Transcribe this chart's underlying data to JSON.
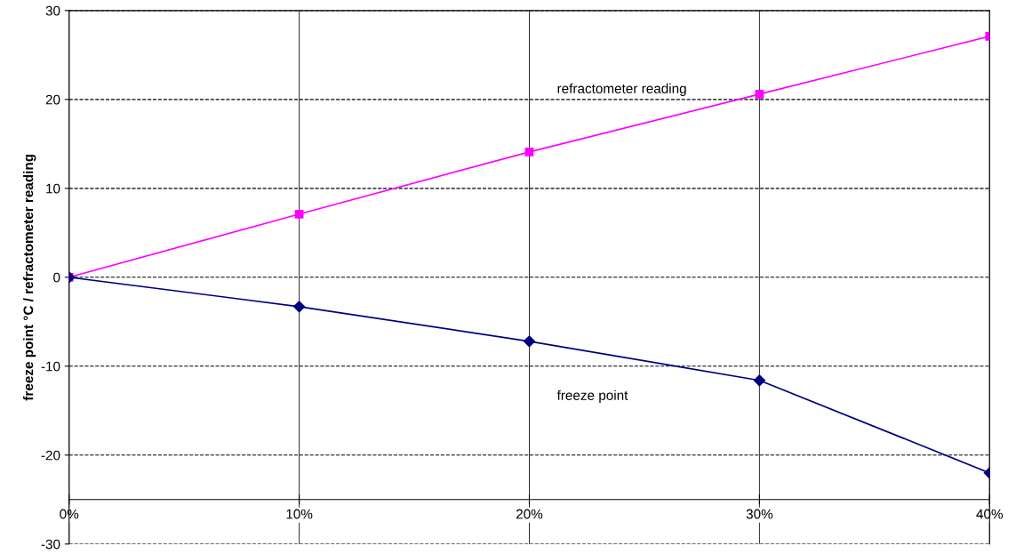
{
  "chart_data": {
    "type": "line",
    "ylabel": "freeze point °C / refractometer reading",
    "x": [
      0,
      0.1,
      0.2,
      0.3,
      0.4
    ],
    "xlim": [
      0,
      0.4
    ],
    "xticks": [
      {
        "value": 0,
        "label": "0%"
      },
      {
        "value": 0.1,
        "label": "10%"
      },
      {
        "value": 0.2,
        "label": "20%"
      },
      {
        "value": 0.3,
        "label": "30%"
      },
      {
        "value": 0.4,
        "label": "40%"
      }
    ],
    "ylim": [
      -30,
      30
    ],
    "yticks": [
      -30,
      -20,
      -10,
      0,
      10,
      20,
      30
    ],
    "grid": true,
    "legend": false,
    "series": [
      {
        "name": "refractometer reading",
        "color": "#ff00ff",
        "marker": "square",
        "values": [
          0,
          7.1,
          14.1,
          20.6,
          27.1
        ]
      },
      {
        "name": "freeze point",
        "color": "#000080",
        "marker": "diamond",
        "values": [
          0,
          -3.3,
          -7.2,
          -11.6,
          -22.0
        ]
      }
    ]
  }
}
